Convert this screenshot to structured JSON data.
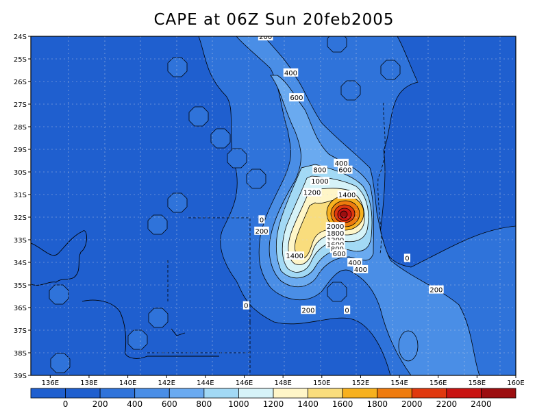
{
  "title": "CAPE at 06Z Sun 20feb2005",
  "colors": {
    "0": "#1f5fcf",
    "200": "#2f73da",
    "400": "#4a8ee6",
    "600": "#6aaaf0",
    "800": "#a2d9f5",
    "1000": "#d6f3f8",
    "1200": "#fff6c8",
    "1400": "#f9dd7d",
    "1600": "#f7b11f",
    "1800": "#ee7b0e",
    "2000": "#e0380e",
    "2200": "#c81412",
    "2400": "#9c0e10"
  },
  "lon_ticks": [
    "136E",
    "138E",
    "140E",
    "142E",
    "144E",
    "146E",
    "148E",
    "150E",
    "152E",
    "154E",
    "156E",
    "158E",
    "160E"
  ],
  "lat_ticks": [
    "24S",
    "25S",
    "26S",
    "27S",
    "28S",
    "29S",
    "30S",
    "31S",
    "32S",
    "33S",
    "34S",
    "35S",
    "36S",
    "37S",
    "38S",
    "39S"
  ],
  "colorbar": [
    "0",
    "200",
    "400",
    "600",
    "800",
    "1000",
    "1200",
    "1400",
    "1600",
    "1800",
    "2000",
    "2200",
    "2400"
  ],
  "contour_labels": [
    {
      "text": "200",
      "lon": 147.1,
      "lat": -24.0
    },
    {
      "text": "400",
      "lon": 148.4,
      "lat": -25.6
    },
    {
      "text": "600",
      "lon": 148.7,
      "lat": -26.7
    },
    {
      "text": "400",
      "lon": 151.0,
      "lat": -29.6
    },
    {
      "text": "600",
      "lon": 151.2,
      "lat": -29.9
    },
    {
      "text": "800",
      "lon": 149.9,
      "lat": -29.9
    },
    {
      "text": "1000",
      "lon": 149.9,
      "lat": -30.4
    },
    {
      "text": "1200",
      "lon": 149.5,
      "lat": -30.9
    },
    {
      "text": "1400",
      "lon": 151.3,
      "lat": -31.0
    },
    {
      "text": "0",
      "lon": 146.9,
      "lat": -32.1
    },
    {
      "text": "200",
      "lon": 146.9,
      "lat": -32.6
    },
    {
      "text": "2000",
      "lon": 150.7,
      "lat": -32.4
    },
    {
      "text": "1800",
      "lon": 150.7,
      "lat": -32.7
    },
    {
      "text": "1200",
      "lon": 150.7,
      "lat": -33.0
    },
    {
      "text": "1600",
      "lon": 150.7,
      "lat": -33.2
    },
    {
      "text": "800",
      "lon": 150.8,
      "lat": -33.4
    },
    {
      "text": "600",
      "lon": 150.9,
      "lat": -33.6
    },
    {
      "text": "1400",
      "lon": 148.6,
      "lat": -33.7
    },
    {
      "text": "400",
      "lon": 151.7,
      "lat": -34.0
    },
    {
      "text": "400",
      "lon": 152.0,
      "lat": -34.3
    },
    {
      "text": "0",
      "lon": 154.4,
      "lat": -33.8
    },
    {
      "text": "200",
      "lon": 155.9,
      "lat": -35.2
    },
    {
      "text": "0",
      "lon": 146.1,
      "lat": -35.9
    },
    {
      "text": "200",
      "lon": 149.3,
      "lat": -36.1
    },
    {
      "text": "0",
      "lon": 151.3,
      "lat": -36.1
    }
  ]
}
